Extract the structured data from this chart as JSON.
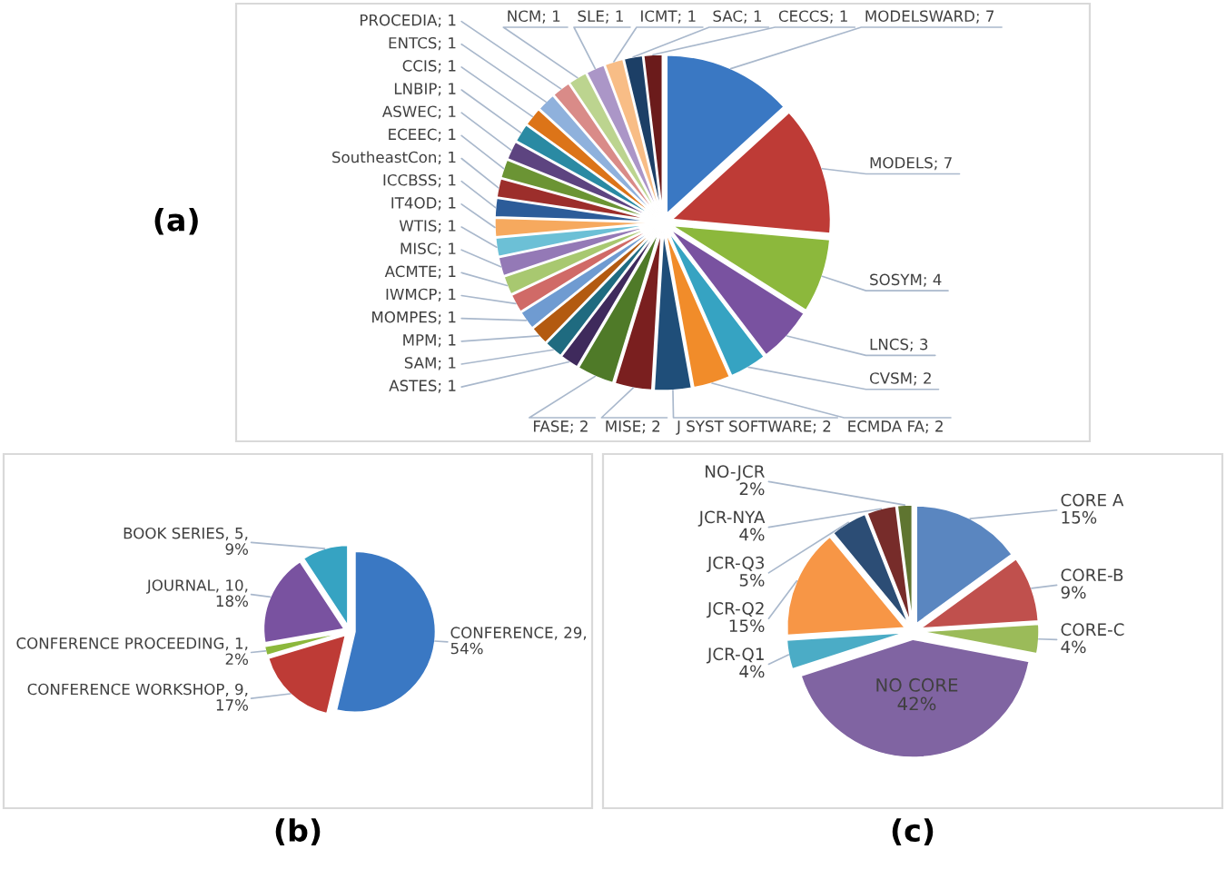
{
  "chart_data": [
    {
      "type": "pie",
      "title": "(a)",
      "value_labels": [
        "; 7",
        "; 7",
        "; 4",
        "; 3",
        "; 2",
        "; 2",
        "; 2",
        "; 2",
        "; 2",
        "; 1",
        "; 1",
        "; 1",
        "; 1",
        "; 1",
        "; 1",
        "; 1",
        "; 1",
        "; 1",
        "; 1",
        "; 1",
        "; 1",
        "; 1",
        "; 1",
        "; 1",
        "; 1",
        "; 1",
        "; 1",
        "; 1",
        "; 1",
        "; 1",
        "; 1"
      ],
      "categories": [
        "MODELSWARD",
        "MODELS",
        "SOSYM",
        "LNCS",
        "CVSM",
        "ECMDA FA",
        "J SYST SOFTWARE",
        "MISE",
        "FASE",
        "ASTES",
        "SAM",
        "MPM",
        "MOMPES",
        "IWMCP",
        "ACMTE",
        "MISC",
        "WTIS",
        "IT4OD",
        "ICCBSS",
        "SoutheastCon",
        "ECEEC",
        "ASWEC",
        "LNBIP",
        "CCIS",
        "ENTCS",
        "PROCEDIA",
        "NCM",
        "SLE",
        "ICMT",
        "SAC",
        "CECCS"
      ],
      "values": [
        7,
        7,
        4,
        3,
        2,
        2,
        2,
        2,
        2,
        1,
        1,
        1,
        1,
        1,
        1,
        1,
        1,
        1,
        1,
        1,
        1,
        1,
        1,
        1,
        1,
        1,
        1,
        1,
        1,
        1,
        1
      ],
      "colors": [
        "#3a78c3",
        "#be3b36",
        "#8cb83c",
        "#7952a0",
        "#36a3c2",
        "#f18c2a",
        "#1f4e79",
        "#7a1f1f",
        "#4f7a28",
        "#3f2a5c",
        "#1f6b80",
        "#b35a10",
        "#6f9bd1",
        "#d06a67",
        "#a8c870",
        "#9479b6",
        "#6cc0d6",
        "#f6a95e",
        "#2c5c99",
        "#9c2e2b",
        "#6b9434",
        "#5d4480",
        "#2a8aa3",
        "#dc7418",
        "#8fb1dc",
        "#d98b88",
        "#bcd48f",
        "#ab96c7",
        "#f8bd86",
        "#1c3f66",
        "#6b1b1b"
      ]
    },
    {
      "type": "pie",
      "title": "(b)",
      "categories": [
        "CONFERENCE",
        "CONFERENCE WORKSHOP",
        "CONFERENCE PROCEEDING",
        "JOURNAL",
        "BOOK SERIES"
      ],
      "values": [
        29,
        9,
        1,
        10,
        5
      ],
      "value_labels": [
        "29, 54%",
        "9, 17%",
        "1, 2%",
        "10, 18%",
        "5, 9%"
      ],
      "colors": [
        "#3a78c3",
        "#be3b36",
        "#8cb83c",
        "#7952a0",
        "#36a3c2"
      ]
    },
    {
      "type": "pie",
      "title": "(c)",
      "categories": [
        "CORE A",
        "CORE-B",
        "CORE-C",
        "NO CORE",
        "JCR-Q1",
        "JCR-Q2",
        "JCR-Q3",
        "JCR-NYA",
        "NO-JCR"
      ],
      "values": [
        15,
        9,
        4,
        42,
        4,
        15,
        5,
        4,
        2
      ],
      "value_labels": [
        "15%",
        "9%",
        "4%",
        "42%",
        "4%",
        "15%",
        "5%",
        "4%",
        "2%"
      ],
      "colors": [
        "#5a86c0",
        "#c0504d",
        "#9bbb59",
        "#8064a2",
        "#4bacc6",
        "#f79646",
        "#2c4d75",
        "#772c2a",
        "#5f7530"
      ]
    }
  ]
}
